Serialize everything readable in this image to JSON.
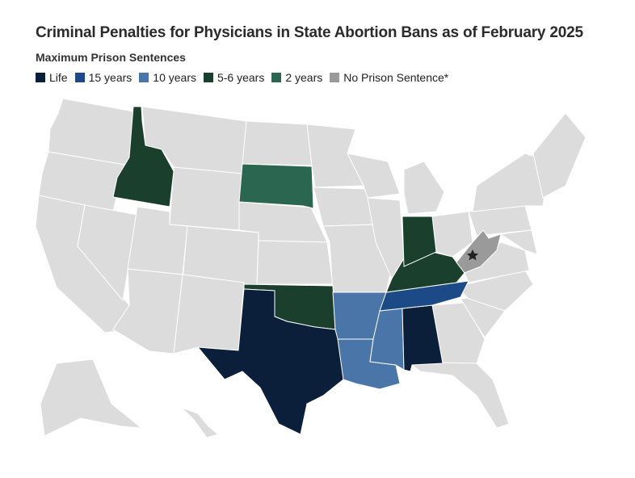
{
  "title": "Criminal Penalties for Physicians in State Abortion Bans as of February 2025",
  "subtitle": "Maximum Prison Sentences",
  "legend": [
    {
      "label": "Life",
      "color": "#0b1f3a"
    },
    {
      "label": "15 years",
      "color": "#1b4a86"
    },
    {
      "label": "10 years",
      "color": "#4a75a8"
    },
    {
      "label": "5-6 years",
      "color": "#1a3f2d"
    },
    {
      "label": "2 years",
      "color": "#2a6650"
    },
    {
      "label": "No Prison Sentence*",
      "color": "#9a9a9a"
    }
  ],
  "colors": {
    "default_state": "#dcdcdc",
    "border": "#ffffff"
  },
  "highlighted_states": {
    "Life": [
      "Texas",
      "Alabama"
    ],
    "15 years": [
      "Tennessee"
    ],
    "10 years": [
      "Arkansas",
      "Louisiana",
      "Mississippi"
    ],
    "5-6 years": [
      "Idaho",
      "Oklahoma",
      "Indiana",
      "Kentucky"
    ],
    "2 years": [
      "South Dakota"
    ],
    "No Prison Sentence*": [
      "West Virginia"
    ]
  },
  "icons": {
    "west_virginia_marker": "star-icon"
  }
}
